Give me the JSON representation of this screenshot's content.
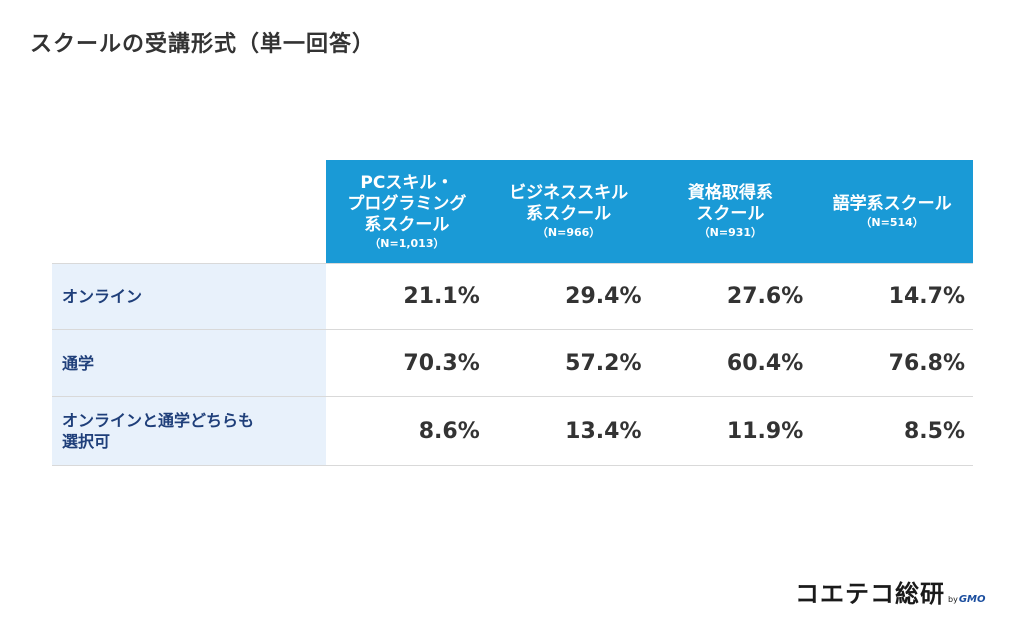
{
  "title": "スクールの受講形式（単一回答）",
  "chart_data": {
    "type": "table",
    "title": "スクールの受講形式（単一回答）",
    "columns": [
      {
        "name": "PCスキル・\nプログラミング\n系スクール",
        "n": "（N=1,013）"
      },
      {
        "name": "ビジネススキル\n系スクール",
        "n": "（N=966）"
      },
      {
        "name": "資格取得系\nスクール",
        "n": "（N=931）"
      },
      {
        "name": "語学系スクール",
        "n": "（N=514）"
      }
    ],
    "rows": [
      {
        "label": "オンライン",
        "values": [
          "21.1%",
          "29.4%",
          "27.6%",
          "14.7%"
        ]
      },
      {
        "label": "通学",
        "values": [
          "70.3%",
          "57.2%",
          "60.4%",
          "76.8%"
        ]
      },
      {
        "label": "オンラインと通学どちらも\n選択可",
        "values": [
          "8.6%",
          "13.4%",
          "11.9%",
          "8.5%"
        ]
      }
    ],
    "colors": {
      "header_bg": "#1a9ad6",
      "row_label_bg": "#e8f1fb",
      "row_label_text": "#1f3f7a"
    }
  },
  "logo": {
    "main": "コエテコ総研",
    "by": "by",
    "brand": "GMO"
  }
}
